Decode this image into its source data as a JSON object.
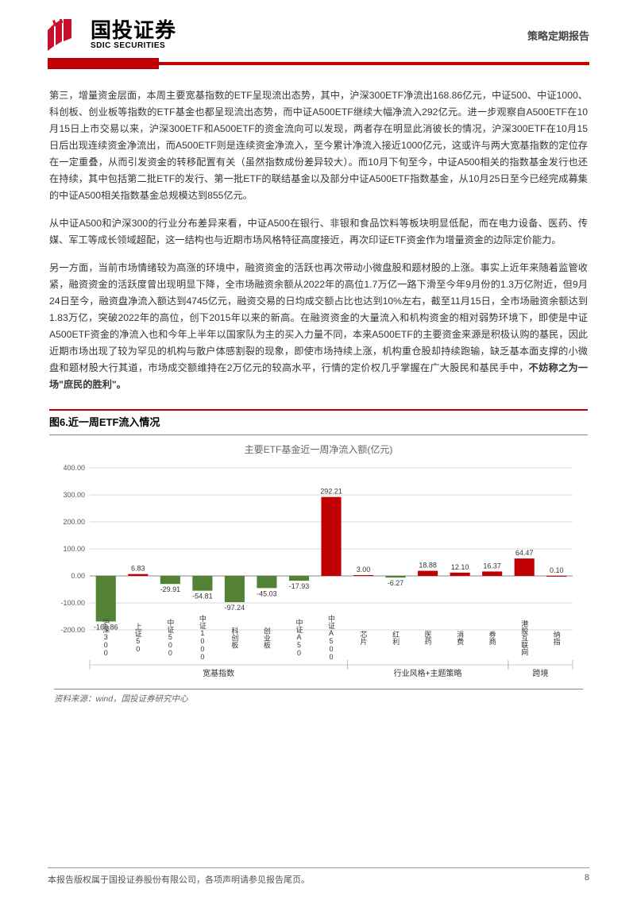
{
  "header": {
    "company_cn": "国投证券",
    "company_en": "SDIC SECURITIES",
    "report_type": "策略定期报告",
    "logo_color": "#c8102e"
  },
  "paragraphs": {
    "p1": "第三，增量资金层面，本周主要宽基指数的ETF呈现流出态势，其中，沪深300ETF净流出168.86亿元，中证500、中证1000、科创板、创业板等指数的ETF基金也都呈现流出态势，而中证A500ETF继续大幅净流入292亿元。进一步观察自A500ETF在10月15日上市交易以来，沪深300ETF和A500ETF的资金流向可以发现，两者存在明显此消彼长的情况，沪深300ETF在10月15日后出现连续资金净流出，而A500ETF则是连续资金净流入，至今累计净流入接近1000亿元，这或许与两大宽基指数的定位存在一定重叠，从而引发资金的转移配置有关（虽然指数成份差异较大）。而10月下旬至今，中证A500相关的指数基金发行也还在持续，其中包括第二批ETF的发行、第一批ETF的联结基金以及部分中证A500ETF指数基金，从10月25日至今已经完成募集的中证A500相关指数基金总规模达到855亿元。",
    "p2": "从中证A500和沪深300的行业分布差异来看，中证A500在银行、非银和食品饮料等板块明显低配，而在电力设备、医药、传媒、军工等成长领域超配，这一结构也与近期市场风格特征高度接近，再次印证ETF资金作为增量资金的边际定价能力。",
    "p3a": "另一方面，当前市场情绪较为高涨的环境中，融资资金的活跃也再次带动小微盘股和题材股的上涨。事实上近年来随着监管收紧，融资资金的活跃度曾出现明显下降，全市场融资余额从2022年的高位1.7万亿一路下滑至今年9月份的1.3万亿附近，但9月24日至今，融资盘净流入额达到4745亿元，融资交易的日均成交额占比也达到10%左右，截至11月15日，全市场融资余额达到1.83万亿，突破2022年的高位，创下2015年以来的新高。在融资资金的大量流入和机构资金的相对弱势环境下，即使是中证A500ETF资金的净流入也和今年上半年以国家队为主的买入力量不同，本来A500ETF的主要资金来源是积极认购的基民，因此近期市场出现了较为罕见的机构与散户体感割裂的现象，即使市场持续上涨，机构重仓股却持续跑输，缺乏基本面支撑的小微盘和题材股大行其道，市场成交额维持在2万亿元的较高水平，行情的定价权几乎掌握在广大股民和基民手中，",
    "p3b": "不妨称之为一场\"庶民的胜利\"。"
  },
  "figure": {
    "title": "图6.近一周ETF流入情况",
    "chart_title": "主要ETF基金近一周净流入额(亿元)",
    "source": "资料来源：wind，国投证券研究中心",
    "ylim": [
      -200,
      400
    ],
    "ytick_step": 100,
    "yticks": [
      -200,
      -100,
      0,
      100,
      200,
      300,
      400
    ],
    "pos_color": "#c00000",
    "neg_color": "#548235",
    "grid_color": "#d9d9d9",
    "bg_color": "#ffffff",
    "bar_width": 0.62,
    "groups": [
      {
        "label": "宽基指数",
        "start": 0,
        "end": 8
      },
      {
        "label": "行业风格+主题策略",
        "start": 8,
        "end": 13
      },
      {
        "label": "跨境",
        "start": 13,
        "end": 15
      }
    ],
    "categories": [
      "沪深300",
      "上证50",
      "中证500",
      "中证1000",
      "科创板",
      "创业板",
      "中证A50",
      "中证A500",
      "芯片",
      "红利",
      "医药",
      "消费",
      "券商",
      "港股互联网",
      "纳指"
    ],
    "values": [
      -168.86,
      6.83,
      -29.91,
      -54.81,
      -97.24,
      -45.03,
      -17.93,
      292.21,
      3.0,
      -6.27,
      18.88,
      12.1,
      16.37,
      64.47,
      0.1
    ]
  },
  "footer": {
    "copyright": "本报告版权属于国投证券股份有限公司，各项声明请参见报告尾页。",
    "page": "8"
  }
}
